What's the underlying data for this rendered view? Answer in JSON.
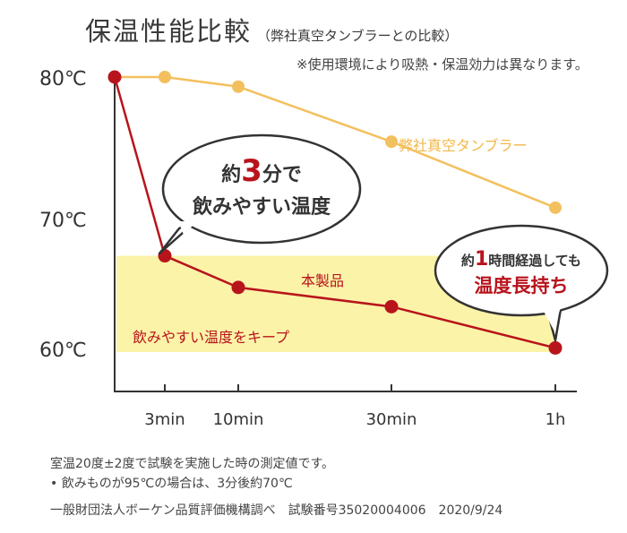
{
  "title": "保温性能比較",
  "subtitle": "（弊社真空タンブラーとの比較）",
  "note": "※使用環境により吸熱・保温効力は異なります。",
  "callout_left": {
    "pre": "約",
    "num": "3",
    "post": "分で",
    "line2": "飲みやすい温度"
  },
  "callout_right": {
    "pre": "約",
    "num": "1",
    "post": "時間経過しても",
    "line2": "温度長持ち"
  },
  "keep_band_label": "飲みやすい温度をキープ",
  "footnotes": {
    "line1": "室温20度±2度で試験を実施した時の測定値です。",
    "line2": "• 飲みものが95℃の場合は、3分後約70℃",
    "line3": "一般財団法人ボーケン品質評価機構調べ　試験番号35020004006　2020/9/24"
  },
  "colors": {
    "product": "#b8141c",
    "competitor": "#f3c05e",
    "band": "#fbf3a8",
    "axis": "#333333"
  },
  "chart_data": {
    "type": "line",
    "x_ticks": [
      "3min",
      "10min",
      "30min",
      "1h"
    ],
    "x": [
      "0min",
      "3min",
      "10min",
      "30min",
      "1h"
    ],
    "y_ticks": [
      "60℃",
      "70℃",
      "80℃"
    ],
    "ylim": [
      57,
      80
    ],
    "highlight_range": [
      60,
      67
    ],
    "series": [
      {
        "name": "本製品",
        "values": [
          80,
          67,
          64.7,
          63.3,
          60.3
        ]
      },
      {
        "name": "弊社真空タンブラー",
        "values": [
          80,
          80,
          79.3,
          75.3,
          70.5
        ]
      }
    ]
  }
}
